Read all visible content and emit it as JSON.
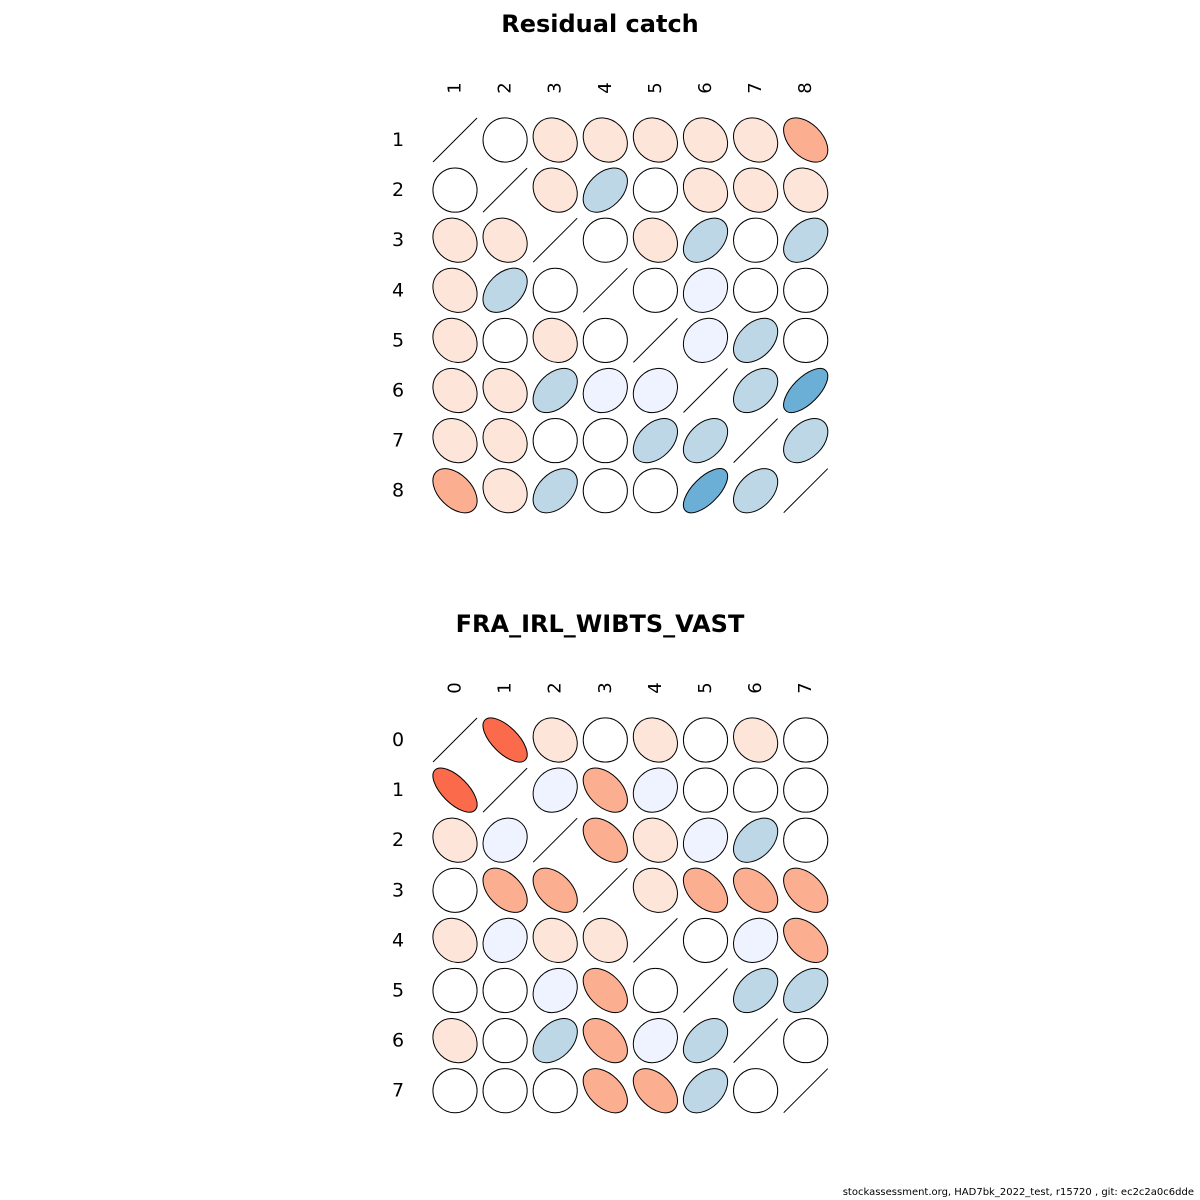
{
  "footer": "stockassessment.org, HAD7bk_2022_test, r15720 , git: ec2c2a0c6dde",
  "chart_data": [
    {
      "type": "heatmap",
      "subtype": "correlation-ellipse-matrix",
      "title": "Residual catch",
      "labels": [
        "1",
        "2",
        "3",
        "4",
        "5",
        "6",
        "7",
        "8"
      ],
      "diagonal": "line",
      "color_scale": {
        "negative": "#e41a1c-like reds (#fee0d2, #fcae91, #fb6a4a)",
        "positive": "blues (#eff3ff, #bdd7e7, #6baed6)",
        "zero": "white"
      },
      "matrix": [
        [
          1,
          0,
          -0.15,
          -0.15,
          -0.15,
          -0.15,
          -0.15,
          -0.45
        ],
        [
          0,
          1,
          -0.15,
          0.4,
          0,
          -0.15,
          -0.15,
          -0.15
        ],
        [
          -0.15,
          -0.15,
          1,
          0,
          -0.15,
          0.4,
          0,
          0.4
        ],
        [
          -0.15,
          0.4,
          0,
          1,
          0,
          0.15,
          0,
          0
        ],
        [
          -0.15,
          0,
          -0.15,
          0,
          1,
          0.15,
          0.4,
          0
        ],
        [
          -0.15,
          -0.15,
          0.4,
          0.15,
          0.15,
          1,
          0.4,
          0.65
        ],
        [
          -0.15,
          -0.15,
          0,
          0,
          0.4,
          0.4,
          1,
          0.4
        ],
        [
          -0.45,
          -0.15,
          0.4,
          0,
          0,
          0.65,
          0.4,
          1
        ]
      ]
    },
    {
      "type": "heatmap",
      "subtype": "correlation-ellipse-matrix",
      "title": "FRA_IRL_WIBTS_VAST",
      "labels": [
        "0",
        "1",
        "2",
        "3",
        "4",
        "5",
        "6",
        "7"
      ],
      "diagonal": "line",
      "matrix": [
        [
          1,
          -0.65,
          -0.15,
          0,
          -0.15,
          0,
          -0.15,
          0
        ],
        [
          -0.65,
          1,
          0.15,
          -0.45,
          0.15,
          0,
          0,
          0
        ],
        [
          -0.15,
          0.15,
          1,
          -0.45,
          -0.15,
          0.15,
          0.4,
          0
        ],
        [
          0,
          -0.45,
          -0.45,
          1,
          -0.15,
          -0.45,
          -0.45,
          -0.45
        ],
        [
          -0.15,
          0.15,
          -0.15,
          -0.15,
          1,
          0,
          0.15,
          -0.45
        ],
        [
          0,
          0,
          0.15,
          -0.45,
          0,
          1,
          0.4,
          0.4
        ],
        [
          -0.15,
          0,
          0.4,
          -0.45,
          0.15,
          0.4,
          1,
          0
        ],
        [
          0,
          0,
          0,
          -0.45,
          -0.45,
          0.4,
          0,
          1
        ]
      ]
    }
  ]
}
